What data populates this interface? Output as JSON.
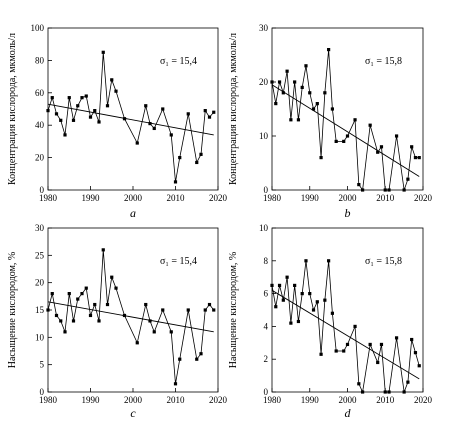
{
  "chart_data": [
    {
      "type": "line",
      "panel_label": "a",
      "annotation": "σ₁ = 15,4",
      "ylabel": "Концентрация кислорода, мкмоль/л",
      "xlim": [
        1980,
        2020
      ],
      "ylim": [
        0,
        100
      ],
      "xticks": [
        1980,
        1990,
        2000,
        2010,
        2020
      ],
      "xtick_labels": [
        "1980",
        "1990",
        "2000",
        "2010",
        "2020"
      ],
      "yticks": [
        0,
        20,
        40,
        60,
        80,
        100
      ],
      "ytick_labels": [
        "0",
        "20",
        "40",
        "60",
        "80",
        "100"
      ],
      "series": [
        {
          "x": [
            1980,
            1981,
            1982,
            1983,
            1984,
            1985,
            1986,
            1987,
            1988,
            1989,
            1990,
            1991,
            1992,
            1993,
            1994,
            1995,
            1996,
            1998,
            2001,
            2003,
            2004,
            2005,
            2007,
            2009,
            2010,
            2011,
            2013,
            2015,
            2016,
            2017,
            2018,
            2019
          ],
          "y": [
            49,
            57,
            47,
            43,
            34,
            57,
            43,
            52,
            57,
            58,
            45,
            49,
            42,
            85,
            52,
            68,
            61,
            44,
            29,
            52,
            41,
            38,
            50,
            34,
            5,
            20,
            47,
            17,
            22,
            49,
            45,
            48
          ]
        }
      ],
      "trend": {
        "x": [
          1980,
          2019
        ],
        "y": [
          53,
          34
        ]
      }
    },
    {
      "type": "line",
      "panel_label": "b",
      "annotation": "σ₁ = 15,8",
      "ylabel": "Концентрация кислорода, мкмоль/л",
      "xlim": [
        1980,
        2020
      ],
      "ylim": [
        0,
        30
      ],
      "xticks": [
        1980,
        1990,
        2000,
        2010,
        2020
      ],
      "xtick_labels": [
        "1980",
        "1990",
        "2000",
        "2010",
        "2020"
      ],
      "yticks": [
        0,
        10,
        20,
        30
      ],
      "ytick_labels": [
        "0",
        "10",
        "20",
        "30"
      ],
      "series": [
        {
          "x": [
            1980,
            1981,
            1982,
            1983,
            1984,
            1985,
            1986,
            1987,
            1988,
            1989,
            1990,
            1991,
            1992,
            1993,
            1994,
            1995,
            1996,
            1997,
            1999,
            2000,
            2002,
            2003,
            2004,
            2006,
            2008,
            2009,
            2010,
            2011,
            2013,
            2015,
            2016,
            2017,
            2018,
            2019
          ],
          "y": [
            20,
            16,
            20,
            18,
            22,
            13,
            20,
            13,
            19,
            23,
            18,
            15,
            16,
            6,
            18,
            26,
            15,
            9,
            9,
            10,
            13,
            1,
            0,
            12,
            7,
            8,
            0,
            0,
            10,
            0,
            2,
            8,
            6,
            6
          ]
        }
      ],
      "trend": {
        "x": [
          1980,
          2019
        ],
        "y": [
          19.5,
          2.5
        ]
      }
    },
    {
      "type": "line",
      "panel_label": "c",
      "annotation": "σ₁ = 15,4",
      "ylabel": "Насыщение кислородом, %",
      "xlim": [
        1980,
        2020
      ],
      "ylim": [
        0,
        30
      ],
      "xticks": [
        1980,
        1990,
        2000,
        2010,
        2020
      ],
      "xtick_labels": [
        "1980",
        "1990",
        "2000",
        "2010",
        "2020"
      ],
      "yticks": [
        0,
        5,
        10,
        15,
        20,
        25,
        30
      ],
      "ytick_labels": [
        "0",
        "5",
        "10",
        "15",
        "20",
        "25",
        "30"
      ],
      "series": [
        {
          "x": [
            1980,
            1981,
            1982,
            1983,
            1984,
            1985,
            1986,
            1987,
            1988,
            1989,
            1990,
            1991,
            1992,
            1993,
            1994,
            1995,
            1996,
            1998,
            2001,
            2003,
            2004,
            2005,
            2007,
            2009,
            2010,
            2011,
            2013,
            2015,
            2016,
            2017,
            2018,
            2019
          ],
          "y": [
            15,
            18,
            14,
            13,
            11,
            18,
            13,
            17,
            18,
            19,
            14,
            16,
            13,
            26,
            16,
            21,
            19,
            14,
            9,
            16,
            13,
            11,
            15,
            11,
            1.5,
            6,
            15,
            6,
            7,
            15,
            16,
            15
          ]
        }
      ],
      "trend": {
        "x": [
          1980,
          2019
        ],
        "y": [
          16.5,
          11
        ]
      }
    },
    {
      "type": "line",
      "panel_label": "d",
      "annotation": "σ₁ = 15,8",
      "ylabel": "Насыщение кислородом, %",
      "xlim": [
        1980,
        2020
      ],
      "ylim": [
        0,
        10
      ],
      "xticks": [
        1980,
        1990,
        2000,
        2010,
        2020
      ],
      "xtick_labels": [
        "1980",
        "1990",
        "2000",
        "2010",
        "2020"
      ],
      "yticks": [
        0,
        2,
        4,
        6,
        8,
        10
      ],
      "ytick_labels": [
        "0",
        "2",
        "4",
        "6",
        "8",
        "10"
      ],
      "series": [
        {
          "x": [
            1980,
            1981,
            1982,
            1983,
            1984,
            1985,
            1986,
            1987,
            1988,
            1989,
            1990,
            1991,
            1992,
            1993,
            1994,
            1995,
            1996,
            1997,
            1999,
            2000,
            2002,
            2003,
            2004,
            2006,
            2008,
            2009,
            2010,
            2011,
            2013,
            2015,
            2016,
            2017,
            2018,
            2019
          ],
          "y": [
            6.5,
            5.2,
            6.5,
            5.6,
            7,
            4.2,
            6.5,
            4.3,
            6,
            8,
            6,
            5,
            5.5,
            2.3,
            5.6,
            8,
            4.8,
            2.5,
            2.5,
            2.9,
            4,
            0.5,
            0,
            2.9,
            1.8,
            2.9,
            0,
            0,
            3.3,
            0,
            0.6,
            3.2,
            2.4,
            1.6
          ]
        }
      ],
      "trend": {
        "x": [
          1980,
          2019
        ],
        "y": [
          6.2,
          0.8
        ]
      }
    }
  ]
}
